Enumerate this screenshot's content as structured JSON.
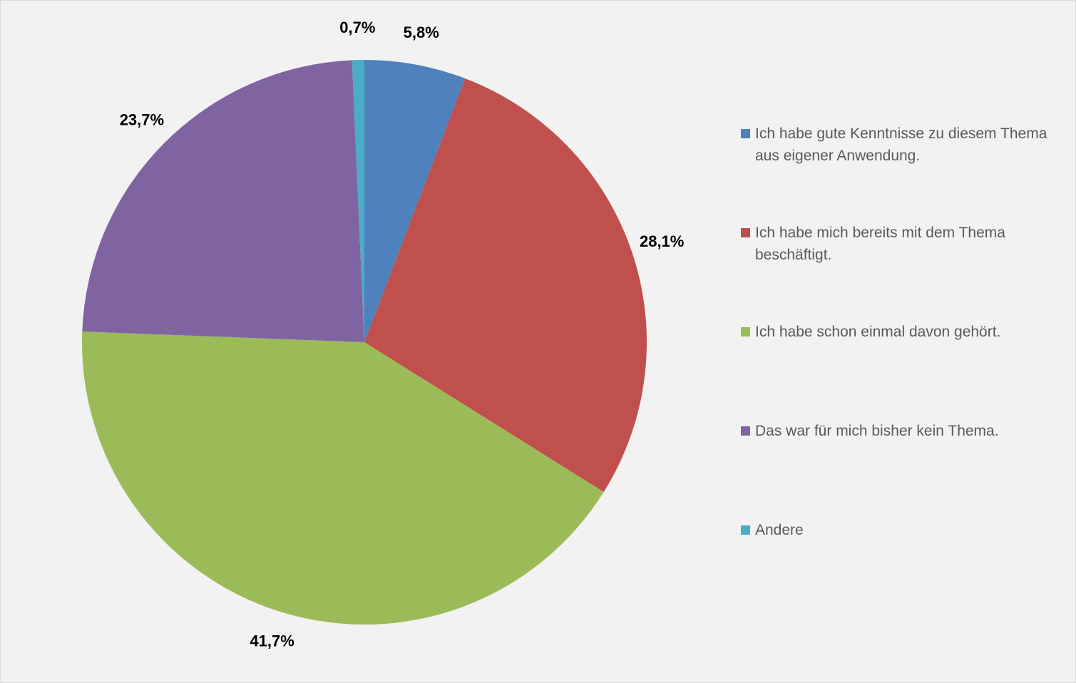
{
  "chart_data": {
    "type": "pie",
    "categories": [
      "Ich habe gute Kenntnisse zu diesem Thema aus eigener Anwendung.",
      "Ich habe mich bereits mit dem Thema beschäftigt.",
      "Ich habe schon einmal davon gehört.",
      "Das war für mich bisher kein Thema.",
      "Andere"
    ],
    "values": [
      5.8,
      28.1,
      41.7,
      23.7,
      0.7
    ],
    "value_labels": [
      "5,8%",
      "28,1%",
      "41,7%",
      "23,7%",
      "0,7%"
    ],
    "colors": [
      "#4f81bd",
      "#c0504d",
      "#9bbb59",
      "#8064a2",
      "#4bacc6"
    ],
    "legend": "right"
  }
}
